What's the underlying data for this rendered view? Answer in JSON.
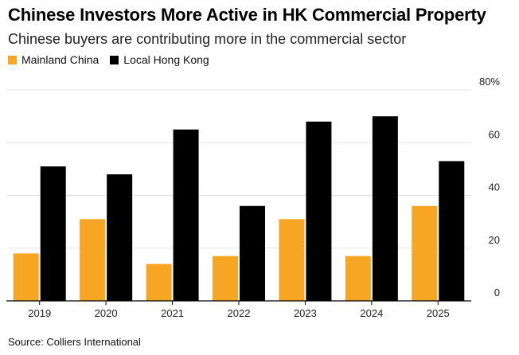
{
  "header": {
    "title": "Chinese Investors More Active in HK Commercial Property",
    "subtitle": "Chinese buyers are contributing more in the commercial sector"
  },
  "legend": {
    "items": [
      {
        "label": "Mainland China",
        "color": "#f6a623"
      },
      {
        "label": "Local Hong Kong",
        "color": "#000000"
      }
    ]
  },
  "source": "Source: Colliers International",
  "chart_data": {
    "type": "bar",
    "categories": [
      "2019",
      "2020",
      "2021",
      "2022",
      "2023",
      "2024",
      "2025"
    ],
    "series": [
      {
        "name": "Mainland China",
        "color": "#f6a623",
        "values": [
          18,
          31,
          14,
          17,
          31,
          17,
          36
        ]
      },
      {
        "name": "Local Hong Kong",
        "color": "#000000",
        "values": [
          51,
          48,
          65,
          36,
          68,
          70,
          53
        ]
      }
    ],
    "ylim": [
      0,
      80
    ],
    "yticks": [
      0,
      20,
      40,
      60,
      80
    ],
    "ytick_labels": [
      "0",
      "20",
      "40",
      "60",
      "80%"
    ],
    "y_axis_position": "right",
    "grid": true
  }
}
